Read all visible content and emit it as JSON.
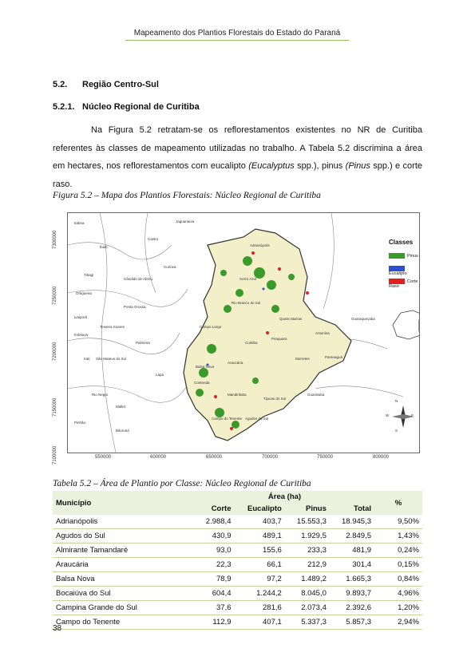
{
  "header": {
    "title": "Mapeamento dos Plantios Florestais do Estado do Paraná"
  },
  "section": {
    "num": "5.2.",
    "title": "Região Centro-Sul"
  },
  "subsection": {
    "num": "5.2.1.",
    "title": "Núcleo Regional de Curitiba"
  },
  "paragraph": {
    "p1": "Na Figura 5.2 retratam-se os reflorestamentos existentes no NR de Curitiba referentes às classes de mapeamento utilizadas no trabalho. A Tabela 5.2 discrimina a área em hectares, nos reflorestamentos com eucalipto ",
    "i1": "(Eucalyptus",
    "p2": " spp.),",
    "p3": " pinus ",
    "i2": "(Pinus",
    "p4": " spp.)",
    "p5": " e corte raso."
  },
  "figure": {
    "caption": "Figura 5.2 – Mapa dos Plantios Florestais: Núcleo Regional de Curitiba",
    "legend_title": "Classes",
    "legend": [
      {
        "label": "Pinus",
        "color": "#3a9a2a"
      },
      {
        "label": "Eucalipto",
        "color": "#2c4ecf"
      },
      {
        "label": "Corte Raso",
        "color": "#e02020"
      }
    ],
    "y_ticks": [
      "7300000",
      "7250000",
      "7200000",
      "7150000",
      "7100000"
    ],
    "x_ticks": [
      "550000",
      "600000",
      "650000",
      "700000",
      "750000",
      "800000"
    ],
    "compass": {
      "n": "N",
      "s": "S",
      "e": "E",
      "w": "W"
    },
    "municipalities": [
      "Itaboa",
      "Jaguariaíva",
      "Ibaiti",
      "Curiúva",
      "Tibagi",
      "Ortigueira",
      "Cândido de Abreu",
      "Ivaiporã",
      "Ponta Grossa",
      "Imbituva",
      "Teixeira Soares",
      "Palmeira",
      "Irati",
      "Lapa",
      "Rio Negro",
      "São Mateus do Sul",
      "Campo Largo",
      "Curitiba",
      "Araucária",
      "Piraquara",
      "Morretes",
      "Paranaguá",
      "Guaratuba",
      "Tijucas do Sul",
      "Quatro Barras",
      "Guaraqueçaba",
      "Antonina",
      "Cerro Azul",
      "Adrianópolis",
      "Rio Branco do Sul",
      "Contenda",
      "Balsa Nova",
      "Mandirituba",
      "Campo do Tenente",
      "Agudos do Sul",
      "Castro",
      "Pinhão",
      "Mallet",
      "Bituruna"
    ]
  },
  "table": {
    "caption": "Tabela 5.2 – Área de Plantio por Classe: Núcleo Regional de Curitiba",
    "col_municipio": "Município",
    "col_area": "Área (ha)",
    "col_pct": "%",
    "sub_cols": [
      "Corte",
      "Eucalipto",
      "Pinus",
      "Total"
    ],
    "rows": [
      [
        "Adrianópolis",
        "2.988,4",
        "403,7",
        "15.553,3",
        "18.945,3",
        "9,50%"
      ],
      [
        "Agudos do Sul",
        "430,9",
        "489,1",
        "1.929,5",
        "2.849,5",
        "1,43%"
      ],
      [
        "Almirante Tamandaré",
        "93,0",
        "155,6",
        "233,3",
        "481,9",
        "0,24%"
      ],
      [
        "Araucária",
        "22,3",
        "66,1",
        "212,9",
        "301,4",
        "0,15%"
      ],
      [
        "Balsa Nova",
        "78,9",
        "97,2",
        "1.489,2",
        "1.665,3",
        "0,84%"
      ],
      [
        "Bocaiúva do Sul",
        "604,4",
        "1.244,2",
        "8.045,0",
        "9.893,7",
        "4,96%"
      ],
      [
        "Campina Grande do Sul",
        "37,6",
        "281,6",
        "2.073,4",
        "2.392,6",
        "1,20%"
      ],
      [
        "Campo do Tenente",
        "112,9",
        "407,1",
        "5.337,3",
        "5.857,3",
        "2,94%"
      ]
    ]
  },
  "page_number": "38"
}
